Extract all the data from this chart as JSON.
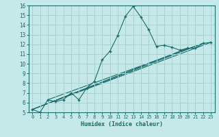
{
  "xlabel": "Humidex (Indice chaleur)",
  "bg_color": "#c5e8e8",
  "grid_color": "#a8d0d0",
  "line_color": "#1a6b6b",
  "xlim": [
    -0.5,
    23.5
  ],
  "ylim": [
    5,
    16
  ],
  "xticks": [
    0,
    1,
    2,
    3,
    4,
    5,
    6,
    7,
    8,
    9,
    10,
    11,
    12,
    13,
    14,
    15,
    16,
    17,
    18,
    19,
    20,
    21,
    22,
    23
  ],
  "yticks": [
    5,
    6,
    7,
    8,
    9,
    10,
    11,
    12,
    13,
    14,
    15,
    16
  ],
  "series": [
    [
      0,
      5.3
    ],
    [
      1,
      5.0
    ],
    [
      2,
      6.3
    ],
    [
      3,
      6.1
    ],
    [
      4,
      6.3
    ],
    [
      5,
      7.0
    ],
    [
      6,
      6.3
    ],
    [
      7,
      7.5
    ],
    [
      8,
      8.2
    ],
    [
      9,
      10.4
    ],
    [
      10,
      11.3
    ],
    [
      11,
      12.9
    ],
    [
      12,
      14.9
    ],
    [
      13,
      15.9
    ],
    [
      14,
      14.8
    ],
    [
      15,
      13.5
    ],
    [
      16,
      11.8
    ],
    [
      17,
      11.9
    ],
    [
      18,
      11.7
    ],
    [
      19,
      11.4
    ],
    [
      20,
      11.6
    ],
    [
      21,
      11.6
    ],
    [
      22,
      12.1
    ],
    [
      23,
      12.2
    ]
  ],
  "linear_lines": [
    [
      [
        0,
        5.3
      ],
      [
        23,
        12.2
      ]
    ],
    [
      [
        0,
        5.3
      ],
      [
        22,
        12.1
      ]
    ],
    [
      [
        0,
        5.3
      ],
      [
        20,
        11.6
      ]
    ],
    [
      [
        2,
        6.3
      ],
      [
        22,
        12.1
      ]
    ]
  ]
}
